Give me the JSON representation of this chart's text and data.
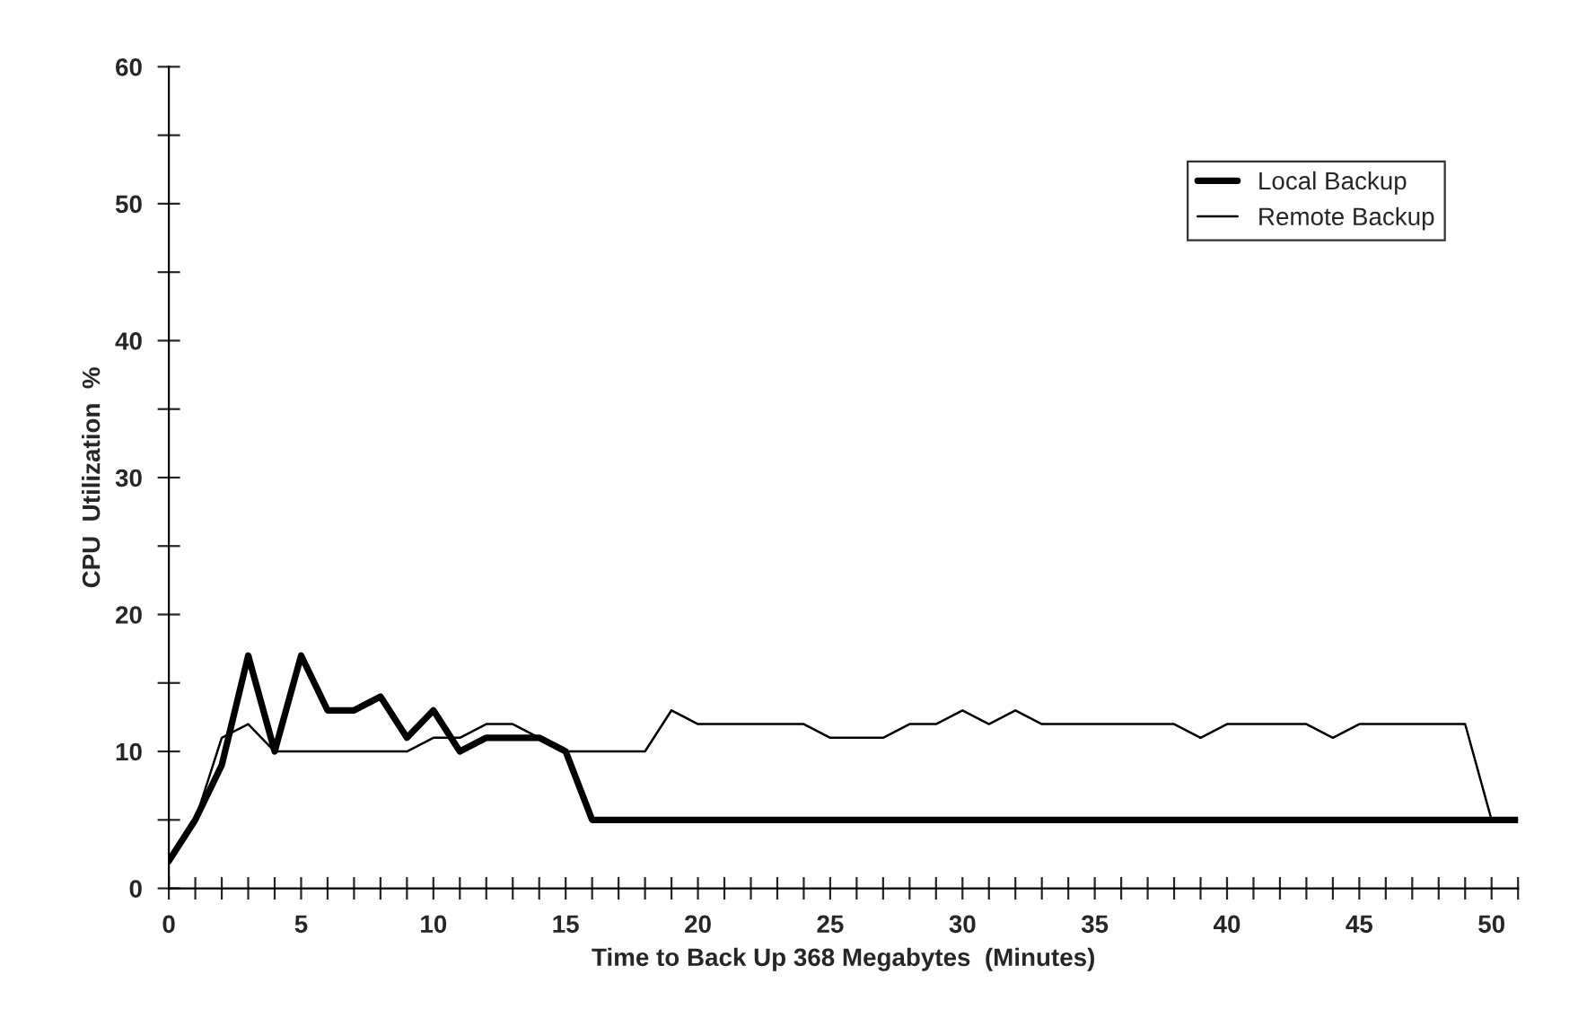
{
  "chart_data": {
    "type": "line",
    "xlabel": "Time to Back Up 368 Megabytes  (Minutes)",
    "ylabel": "CPU  Utilization  %",
    "x": [
      0,
      1,
      2,
      3,
      4,
      5,
      6,
      7,
      8,
      9,
      10,
      11,
      12,
      13,
      14,
      15,
      16,
      17,
      18,
      19,
      20,
      21,
      22,
      23,
      24,
      25,
      26,
      27,
      28,
      29,
      30,
      31,
      32,
      33,
      34,
      35,
      36,
      37,
      38,
      39,
      40,
      41,
      42,
      43,
      44,
      45,
      46,
      47,
      48,
      49,
      50,
      51
    ],
    "series": [
      {
        "name": "Local Backup",
        "color": "#000000",
        "values": [
          2,
          5,
          9,
          17,
          10,
          17,
          13,
          13,
          14,
          11,
          13,
          10,
          11,
          11,
          11,
          10,
          5,
          5,
          5,
          5,
          5,
          5,
          5,
          5,
          5,
          5,
          5,
          5,
          5,
          5,
          5,
          5,
          5,
          5,
          5,
          5,
          5,
          5,
          5,
          5,
          5,
          5,
          5,
          5,
          5,
          5,
          5,
          5,
          5,
          5,
          5,
          5
        ]
      },
      {
        "name": "Remote Backup",
        "color": "#000000",
        "values": [
          2,
          5,
          11,
          12,
          10,
          10,
          10,
          10,
          10,
          10,
          11,
          11,
          12,
          12,
          11,
          10,
          10,
          10,
          10,
          13,
          12,
          12,
          12,
          12,
          12,
          11,
          11,
          11,
          12,
          12,
          13,
          12,
          13,
          12,
          12,
          12,
          12,
          12,
          12,
          11,
          12,
          12,
          12,
          12,
          11,
          12,
          12,
          12,
          12,
          12,
          5,
          5
        ]
      }
    ],
    "xlim": [
      0,
      51
    ],
    "ylim": [
      0,
      60
    ],
    "xticks": [
      0,
      {
        "value": 1,
        "label": null
      },
      {
        "value": 2,
        "label": null
      },
      {
        "value": 3,
        "label": null
      },
      {
        "value": 4,
        "label": null
      },
      5,
      {
        "value": 6,
        "label": null
      },
      {
        "value": 7,
        "label": null
      },
      {
        "value": 8,
        "label": null
      },
      {
        "value": 9,
        "label": null
      },
      10,
      {
        "value": 11,
        "label": null
      },
      {
        "value": 12,
        "label": null
      },
      {
        "value": 13,
        "label": null
      },
      {
        "value": 14,
        "label": null
      },
      15,
      {
        "value": 16,
        "label": null
      },
      {
        "value": 17,
        "label": null
      },
      {
        "value": 18,
        "label": null
      },
      {
        "value": 19,
        "label": null
      },
      20,
      {
        "value": 21,
        "label": null
      },
      {
        "value": 22,
        "label": null
      },
      {
        "value": 23,
        "label": null
      },
      {
        "value": 24,
        "label": null
      },
      25,
      {
        "value": 26,
        "label": null
      },
      {
        "value": 27,
        "label": null
      },
      {
        "value": 28,
        "label": null
      },
      {
        "value": 29,
        "label": null
      },
      30,
      {
        "value": 31,
        "label": null
      },
      {
        "value": 32,
        "label": null
      },
      {
        "value": 33,
        "label": null
      },
      {
        "value": 34,
        "label": null
      },
      35,
      {
        "value": 36,
        "label": null
      },
      {
        "value": 37,
        "label": null
      },
      {
        "value": 38,
        "label": null
      },
      {
        "value": 39,
        "label": null
      },
      40,
      {
        "value": 41,
        "label": null
      },
      {
        "value": 42,
        "label": null
      },
      {
        "value": 43,
        "label": null
      },
      {
        "value": 44,
        "label": null
      },
      45,
      {
        "value": 46,
        "label": null
      },
      {
        "value": 47,
        "label": null
      },
      {
        "value": 48,
        "label": null
      },
      {
        "value": 49,
        "label": null
      },
      50,
      {
        "value": 51,
        "label": null
      }
    ],
    "yticks": [
      0,
      {
        "value": 5,
        "label": null
      },
      10,
      {
        "value": 15,
        "label": null
      },
      20,
      {
        "value": 25,
        "label": null
      },
      30,
      {
        "value": 35,
        "label": null
      },
      40,
      {
        "value": 45,
        "label": null
      },
      50,
      {
        "value": 55,
        "label": null
      },
      60
    ],
    "grid": false,
    "legend": "top right",
    "marker": "none",
    "line_style": "solid"
  }
}
